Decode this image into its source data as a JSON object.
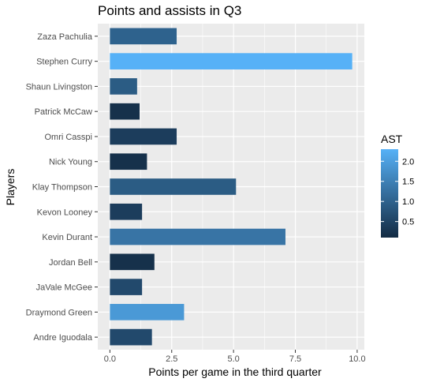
{
  "chart_data": {
    "type": "bar",
    "orientation": "horizontal",
    "title": "Points and assists in Q3",
    "xlabel": "Points per game in the third quarter",
    "ylabel": "Players",
    "categories": [
      "Zaza Pachulia",
      "Stephen Curry",
      "Shaun Livingston",
      "Patrick McCaw",
      "Omri Casspi",
      "Nick Young",
      "Klay Thompson",
      "Kevon Looney",
      "Kevin Durant",
      "Jordan Bell",
      "JaVale McGee",
      "Draymond Green",
      "Andre Iguodala"
    ],
    "values": [
      2.7,
      9.8,
      1.1,
      1.2,
      2.7,
      1.5,
      5.1,
      1.3,
      7.1,
      1.8,
      1.3,
      3.0,
      1.7
    ],
    "fill_values": [
      1.0,
      2.3,
      0.9,
      0.2,
      0.4,
      0.2,
      0.9,
      0.4,
      1.3,
      0.2,
      0.6,
      1.9,
      0.6
    ],
    "fill_label": "AST",
    "xlim": [
      -0.49,
      10.29
    ],
    "x_ticks": [
      "0.0",
      "2.5",
      "5.0",
      "7.5",
      "10.0"
    ],
    "legend": {
      "title": "AST",
      "position": "right",
      "ticks": [
        "0.5",
        "1.0",
        "1.5",
        "2.0"
      ],
      "range": [
        0.1,
        2.3
      ],
      "low_color": "#132B43",
      "high_color": "#56B1F7"
    },
    "grid": true,
    "panel_background": "#EBEBEB"
  }
}
